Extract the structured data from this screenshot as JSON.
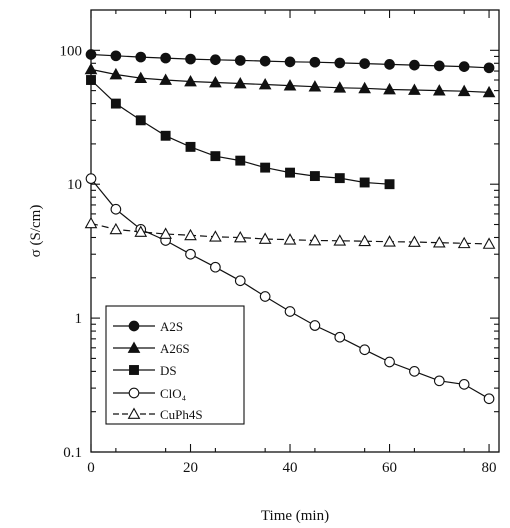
{
  "chart_data": {
    "type": "line",
    "title": "",
    "xlabel": "Time (min)",
    "ylabel": "σ (S/cm)",
    "xlim": [
      0,
      82
    ],
    "ylim": [
      0.1,
      200
    ],
    "yscale": "log",
    "grid": false,
    "legend_position": "bottom-left",
    "x_ticks": [
      0,
      20,
      40,
      60,
      80
    ],
    "y_ticks": [
      0.1,
      1,
      10,
      100
    ],
    "x_tick_labels": [
      "0",
      "20",
      "40",
      "60",
      "80"
    ],
    "y_tick_labels": [
      "0.1",
      "1",
      "10",
      "100"
    ],
    "series": [
      {
        "name": "A2S",
        "marker": "filled-circle",
        "line": "solid",
        "x": [
          0,
          5,
          10,
          15,
          20,
          25,
          30,
          35,
          40,
          45,
          50,
          55,
          60,
          65,
          70,
          75,
          80
        ],
        "y": [
          93,
          91,
          89,
          87.5,
          86,
          85,
          84,
          83,
          82,
          81.5,
          80.5,
          79.5,
          78.5,
          77.5,
          76.5,
          75.5,
          74
        ]
      },
      {
        "name": "A26S",
        "marker": "filled-triangle",
        "line": "solid",
        "x": [
          0,
          5,
          10,
          15,
          20,
          25,
          30,
          35,
          40,
          45,
          50,
          55,
          60,
          65,
          70,
          75,
          80
        ],
        "y": [
          72,
          66,
          62,
          60,
          58.5,
          57.5,
          56.5,
          55.5,
          54.5,
          53.5,
          52.5,
          52,
          51,
          50.5,
          50,
          49.5,
          48.5
        ]
      },
      {
        "name": "DS",
        "marker": "filled-square",
        "line": "solid",
        "x": [
          0,
          5,
          10,
          15,
          20,
          25,
          30,
          35,
          40,
          45,
          50,
          55,
          60
        ],
        "y": [
          60,
          40,
          30,
          23,
          19,
          16.2,
          15,
          13.3,
          12.2,
          11.5,
          11.1,
          10.3,
          10.0
        ]
      },
      {
        "name": "ClO₄",
        "marker": "open-circle",
        "line": "solid",
        "x": [
          0,
          5,
          10,
          15,
          20,
          25,
          30,
          35,
          40,
          45,
          50,
          55,
          60,
          65,
          70,
          75,
          80
        ],
        "y": [
          11,
          6.5,
          4.6,
          3.8,
          3.0,
          2.4,
          1.9,
          1.45,
          1.12,
          0.88,
          0.72,
          0.58,
          0.47,
          0.4,
          0.34,
          0.32,
          0.25
        ]
      },
      {
        "name": "CuPh4S",
        "marker": "open-triangle",
        "line": "dashed",
        "x": [
          0,
          5,
          10,
          15,
          20,
          25,
          30,
          35,
          40,
          45,
          50,
          55,
          60,
          65,
          70,
          75,
          80
        ],
        "y": [
          5.1,
          4.6,
          4.4,
          4.25,
          4.15,
          4.05,
          4.0,
          3.9,
          3.85,
          3.8,
          3.78,
          3.75,
          3.72,
          3.7,
          3.66,
          3.62,
          3.58
        ]
      }
    ]
  }
}
